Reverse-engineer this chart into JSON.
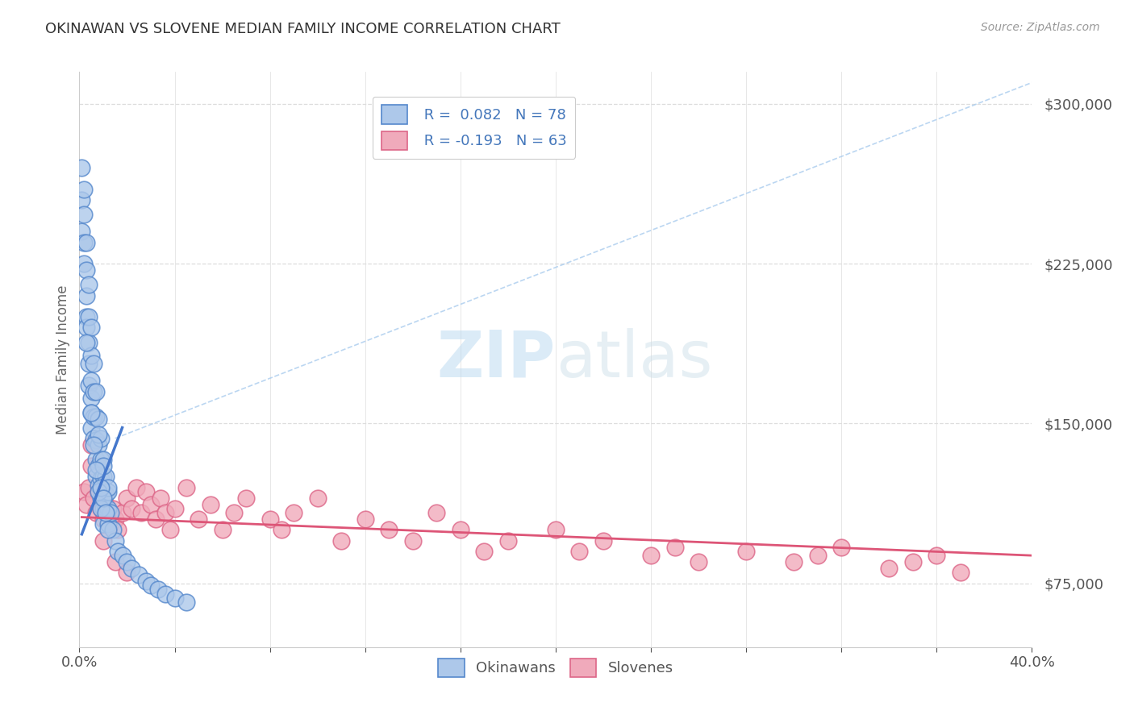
{
  "title": "OKINAWAN VS SLOVENE MEDIAN FAMILY INCOME CORRELATION CHART",
  "source_text": "Source: ZipAtlas.com",
  "ylabel": "Median Family Income",
  "xlim": [
    0.0,
    0.4
  ],
  "ylim": [
    45000,
    315000
  ],
  "xtick_labels_sparse": [
    "0.0%",
    "",
    "",
    "",
    "",
    "",
    "",
    "",
    "",
    "",
    "40.0%"
  ],
  "ytick_labels": [
    "$75,000",
    "$150,000",
    "$225,000",
    "$300,000"
  ],
  "ytick_values": [
    75000,
    150000,
    225000,
    300000
  ],
  "okinawan_color": "#adc8ea",
  "slovene_color": "#f0aabb",
  "okinawan_edge": "#5588cc",
  "slovene_edge": "#dd6688",
  "okinawan_line_color": "#4477cc",
  "slovene_line_color": "#dd5577",
  "dash_line_color": "#aaccee",
  "legend_r_color": "#4477bb",
  "watermark_color": "#d0e8f5",
  "background_color": "#ffffff",
  "grid_color": "#dddddd",
  "title_color": "#333333",
  "source_color": "#999999",
  "ylabel_color": "#666666",
  "bottom_legend_color": "#555555",
  "ok_x": [
    0.001,
    0.001,
    0.001,
    0.002,
    0.002,
    0.002,
    0.002,
    0.003,
    0.003,
    0.003,
    0.003,
    0.003,
    0.004,
    0.004,
    0.004,
    0.004,
    0.004,
    0.005,
    0.005,
    0.005,
    0.005,
    0.005,
    0.005,
    0.006,
    0.006,
    0.006,
    0.006,
    0.007,
    0.007,
    0.007,
    0.007,
    0.007,
    0.008,
    0.008,
    0.008,
    0.008,
    0.009,
    0.009,
    0.009,
    0.009,
    0.01,
    0.01,
    0.01,
    0.01,
    0.01,
    0.011,
    0.011,
    0.011,
    0.012,
    0.012,
    0.012,
    0.013,
    0.014,
    0.015,
    0.016,
    0.018,
    0.02,
    0.022,
    0.025,
    0.028,
    0.03,
    0.033,
    0.036,
    0.04,
    0.045,
    0.003,
    0.008,
    0.01,
    0.012,
    0.005,
    0.006,
    0.007,
    0.008,
    0.009,
    0.009,
    0.01,
    0.011,
    0.012
  ],
  "ok_y": [
    270000,
    255000,
    240000,
    260000,
    248000,
    235000,
    225000,
    235000,
    222000,
    210000,
    200000,
    195000,
    215000,
    200000,
    188000,
    178000,
    168000,
    195000,
    182000,
    170000,
    162000,
    155000,
    148000,
    178000,
    165000,
    153000,
    143000,
    165000,
    153000,
    142000,
    133000,
    125000,
    152000,
    140000,
    130000,
    121000,
    143000,
    133000,
    124000,
    115000,
    133000,
    125000,
    117000,
    110000,
    103000,
    125000,
    117000,
    110000,
    118000,
    110000,
    103000,
    108000,
    100000,
    95000,
    90000,
    88000,
    85000,
    82000,
    79000,
    76000,
    74000,
    72000,
    70000,
    68000,
    66000,
    188000,
    145000,
    130000,
    120000,
    155000,
    140000,
    128000,
    118000,
    110000,
    120000,
    115000,
    108000,
    100000
  ],
  "sl_x": [
    0.002,
    0.003,
    0.004,
    0.005,
    0.006,
    0.007,
    0.008,
    0.009,
    0.01,
    0.011,
    0.012,
    0.013,
    0.014,
    0.015,
    0.016,
    0.018,
    0.02,
    0.022,
    0.024,
    0.026,
    0.028,
    0.03,
    0.032,
    0.034,
    0.036,
    0.038,
    0.04,
    0.045,
    0.05,
    0.055,
    0.06,
    0.065,
    0.07,
    0.08,
    0.085,
    0.09,
    0.1,
    0.11,
    0.12,
    0.13,
    0.14,
    0.15,
    0.16,
    0.17,
    0.18,
    0.2,
    0.21,
    0.22,
    0.24,
    0.25,
    0.26,
    0.28,
    0.3,
    0.31,
    0.32,
    0.34,
    0.35,
    0.36,
    0.37,
    0.005,
    0.01,
    0.015,
    0.02
  ],
  "sl_y": [
    118000,
    112000,
    120000,
    130000,
    115000,
    108000,
    118000,
    110000,
    105000,
    112000,
    108000,
    103000,
    110000,
    105000,
    100000,
    108000,
    115000,
    110000,
    120000,
    108000,
    118000,
    112000,
    105000,
    115000,
    108000,
    100000,
    110000,
    120000,
    105000,
    112000,
    100000,
    108000,
    115000,
    105000,
    100000,
    108000,
    115000,
    95000,
    105000,
    100000,
    95000,
    108000,
    100000,
    90000,
    95000,
    100000,
    90000,
    95000,
    88000,
    92000,
    85000,
    90000,
    85000,
    88000,
    92000,
    82000,
    85000,
    88000,
    80000,
    140000,
    95000,
    85000,
    80000
  ],
  "ok_line_x": [
    0.001,
    0.018
  ],
  "ok_line_y": [
    98000,
    148000
  ],
  "sl_line_x": [
    0.001,
    0.4
  ],
  "sl_line_y": [
    106000,
    88000
  ],
  "dash_line_x": [
    0.015,
    0.4
  ],
  "dash_line_y": [
    143000,
    310000
  ]
}
